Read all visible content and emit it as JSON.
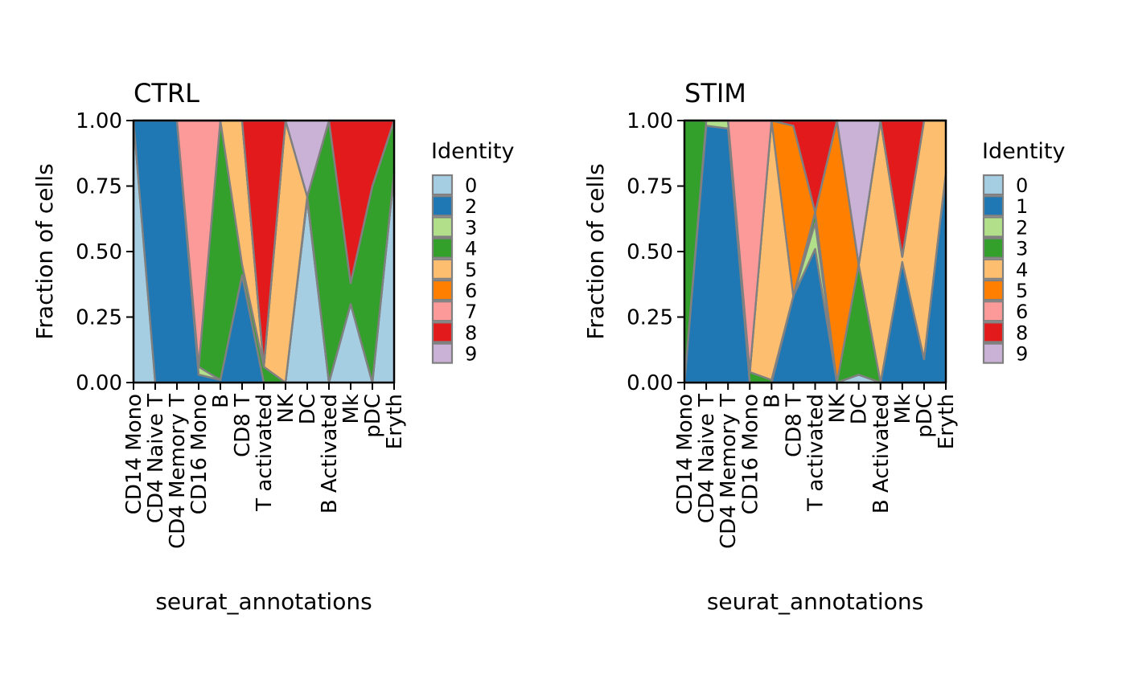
{
  "chart_data": [
    {
      "type": "area",
      "title": "CTRL",
      "xlabel": "seurat_annotations",
      "ylabel": "Fraction of cells",
      "ylim": [
        0,
        1
      ],
      "yticks": [
        "0.00",
        "0.25",
        "0.50",
        "0.75",
        "1.00"
      ],
      "legend_title": "Identity",
      "legend_position": "right",
      "categories": [
        "CD14 Mono",
        "CD4 Naive T",
        "CD4 Memory T",
        "CD16 Mono",
        "B",
        "CD8 T",
        "T activated",
        "NK",
        "DC",
        "B Activated",
        "Mk",
        "pDC",
        "Eryth"
      ],
      "series": [
        {
          "name": "0",
          "color": "#A6CEE3",
          "values": [
            1.0,
            0,
            0,
            0,
            0,
            0,
            0,
            0,
            0.7,
            0,
            0.3,
            0,
            0.8
          ]
        },
        {
          "name": "2",
          "color": "#1F78B4",
          "values": [
            0,
            1.0,
            1.0,
            0.03,
            0.01,
            0.41,
            0,
            0,
            0,
            0,
            0,
            0,
            0
          ]
        },
        {
          "name": "3",
          "color": "#B2DF8A",
          "values": [
            0,
            0,
            0,
            0.03,
            0,
            0,
            0,
            0,
            0.01,
            0,
            0,
            0,
            0
          ]
        },
        {
          "name": "4",
          "color": "#33A02C",
          "values": [
            0,
            0,
            0,
            0,
            0.99,
            0.04,
            0.06,
            0,
            0,
            1.0,
            0.08,
            0.75,
            0.2
          ]
        },
        {
          "name": "5",
          "color": "#FDBF6F",
          "values": [
            0,
            0,
            0,
            0,
            0,
            0.55,
            0,
            1.0,
            0,
            0,
            0,
            0,
            0
          ]
        },
        {
          "name": "6",
          "color": "#FF7F00",
          "values": [
            0,
            0,
            0,
            0,
            0,
            0,
            0,
            0,
            0,
            0,
            0,
            0,
            0
          ]
        },
        {
          "name": "7",
          "color": "#FB9A99",
          "values": [
            0,
            0,
            0,
            0.94,
            0,
            0,
            0,
            0,
            0,
            0,
            0,
            0,
            0
          ]
        },
        {
          "name": "8",
          "color": "#E31A1C",
          "values": [
            0,
            0,
            0,
            0,
            0,
            0,
            0.94,
            0,
            0,
            0,
            0.62,
            0.25,
            0
          ]
        },
        {
          "name": "9",
          "color": "#CAB2D6",
          "values": [
            0,
            0,
            0,
            0,
            0,
            0,
            0,
            0,
            0.29,
            0,
            0,
            0,
            0
          ]
        }
      ]
    },
    {
      "type": "area",
      "title": "STIM",
      "xlabel": "seurat_annotations",
      "ylabel": "Fraction of cells",
      "ylim": [
        0,
        1
      ],
      "yticks": [
        "0.00",
        "0.25",
        "0.50",
        "0.75",
        "1.00"
      ],
      "legend_title": "Identity",
      "legend_position": "right",
      "categories": [
        "CD14 Mono",
        "CD4 Naive T",
        "CD4 Memory T",
        "CD16 Mono",
        "B",
        "CD8 T",
        "T activated",
        "NK",
        "DC",
        "B Activated",
        "Mk",
        "pDC",
        "Eryth"
      ],
      "series": [
        {
          "name": "0",
          "color": "#A6CEE3",
          "values": [
            0,
            0,
            0,
            0,
            0,
            0,
            0,
            0,
            0.03,
            0,
            0,
            0,
            0
          ]
        },
        {
          "name": "1",
          "color": "#1F78B4",
          "values": [
            0,
            0.98,
            0.97,
            0,
            0,
            0.33,
            0.51,
            0,
            0,
            0,
            0.46,
            0.09,
            0.8
          ]
        },
        {
          "name": "2",
          "color": "#B2DF8A",
          "values": [
            0,
            0.02,
            0.03,
            0,
            0,
            0,
            0.1,
            0,
            0,
            0,
            0,
            0,
            0
          ]
        },
        {
          "name": "3",
          "color": "#33A02C",
          "values": [
            1.0,
            0,
            0,
            0.04,
            0.01,
            0,
            0.04,
            0,
            0.42,
            0,
            0,
            0,
            0
          ]
        },
        {
          "name": "4",
          "color": "#FDBF6F",
          "values": [
            0,
            0,
            0,
            0,
            0.99,
            0,
            0,
            0,
            0,
            1.0,
            0.02,
            0.91,
            0.2
          ]
        },
        {
          "name": "5",
          "color": "#FF7F00",
          "values": [
            0,
            0,
            0,
            0,
            0,
            0.65,
            0,
            1.0,
            0,
            0,
            0,
            0,
            0
          ]
        },
        {
          "name": "6",
          "color": "#FB9A99",
          "values": [
            0,
            0,
            0,
            0.96,
            0,
            0,
            0,
            0,
            0,
            0,
            0,
            0,
            0
          ]
        },
        {
          "name": "8",
          "color": "#E31A1C",
          "values": [
            0,
            0,
            0,
            0,
            0,
            0.02,
            0.35,
            0,
            0,
            0,
            0.52,
            0,
            0
          ]
        },
        {
          "name": "9",
          "color": "#CAB2D6",
          "values": [
            0,
            0,
            0,
            0,
            0,
            0,
            0,
            0,
            0.55,
            0,
            0,
            0,
            0
          ]
        }
      ]
    }
  ]
}
